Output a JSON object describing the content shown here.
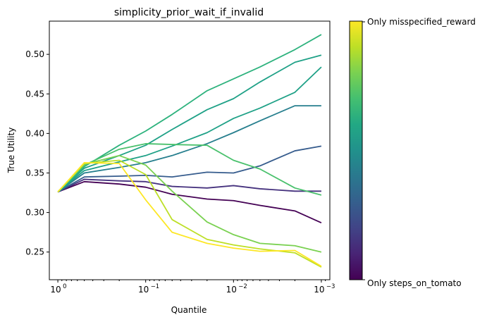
{
  "chart_data": {
    "type": "line",
    "title": "simplicity_prior_wait_if_invalid",
    "xlabel": "Quantile",
    "ylabel": "True Utility",
    "x_scale": "log-reversed",
    "x": [
      1,
      0.5,
      0.2,
      0.1,
      0.05,
      0.02,
      0.01,
      0.005,
      0.002,
      0.001
    ],
    "xlim": [
      1.25,
      0.0008
    ],
    "ylim": [
      0.215,
      0.542
    ],
    "x_ticks": [
      {
        "value": 1,
        "base": "10",
        "exp": "0"
      },
      {
        "value": 0.1,
        "base": "10",
        "exp": "−1"
      },
      {
        "value": 0.01,
        "base": "10",
        "exp": "−2"
      },
      {
        "value": 0.001,
        "base": "10",
        "exp": "−3"
      }
    ],
    "y_ticks": [
      "0.25",
      "0.30",
      "0.35",
      "0.40",
      "0.45",
      "0.50"
    ],
    "colorbar": {
      "top_label": "Only misspecified_reward",
      "bottom_label": "Only steps_on_tomato",
      "colormap": "viridis"
    },
    "series": [
      {
        "color": "#440154",
        "values": [
          0.326,
          0.339,
          0.336,
          0.332,
          0.323,
          0.317,
          0.315,
          0.309,
          0.302,
          0.287
        ]
      },
      {
        "color": "#46327e",
        "values": [
          0.326,
          0.342,
          0.34,
          0.339,
          0.333,
          0.331,
          0.334,
          0.33,
          0.327,
          0.327
        ]
      },
      {
        "color": "#365c8d",
        "values": [
          0.326,
          0.345,
          0.346,
          0.347,
          0.345,
          0.351,
          0.35,
          0.359,
          0.378,
          0.384
        ]
      },
      {
        "color": "#277f8e",
        "values": [
          0.326,
          0.35,
          0.357,
          0.363,
          0.372,
          0.387,
          0.401,
          0.416,
          0.435,
          0.435
        ]
      },
      {
        "color": "#1fa187",
        "values": [
          0.326,
          0.353,
          0.364,
          0.372,
          0.384,
          0.401,
          0.419,
          0.432,
          0.452,
          0.484
        ]
      },
      {
        "color": "#1fa187",
        "values": [
          0.326,
          0.356,
          0.372,
          0.385,
          0.405,
          0.43,
          0.444,
          0.465,
          0.49,
          0.499
        ]
      },
      {
        "color": "#2db27d",
        "values": [
          0.326,
          0.358,
          0.385,
          0.403,
          0.424,
          0.454,
          0.469,
          0.484,
          0.506,
          0.525
        ]
      },
      {
        "color": "#4ac16d",
        "values": [
          0.326,
          0.36,
          0.38,
          0.387,
          0.386,
          0.385,
          0.366,
          0.355,
          0.331,
          0.322
        ]
      },
      {
        "color": "#7ad151",
        "values": [
          0.326,
          0.361,
          0.372,
          0.36,
          0.327,
          0.288,
          0.272,
          0.261,
          0.258,
          0.25
        ]
      },
      {
        "color": "#bddf26",
        "values": [
          0.326,
          0.362,
          0.366,
          0.348,
          0.291,
          0.266,
          0.259,
          0.254,
          0.249,
          0.231
        ]
      },
      {
        "color": "#fde725",
        "values": [
          0.326,
          0.363,
          0.362,
          0.316,
          0.275,
          0.261,
          0.255,
          0.251,
          0.252,
          0.232
        ]
      }
    ]
  }
}
